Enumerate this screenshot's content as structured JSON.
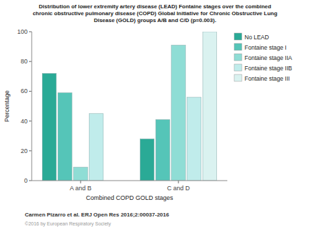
{
  "chart_data": {
    "type": "bar",
    "title": "Distribution of lower extremity artery disease (LEAD) Fontaine stages over the combined\nchronic obstructive pulmonary disease (COPD) Global Initiative for Chronic Obstructive Lung\nDisease (GOLD) groups A/B and C/D (p=0.003).",
    "x_label": "Combined COPD GOLD stages",
    "y_label": "Percentage",
    "categories": [
      "A and B",
      "C and D"
    ],
    "series": [
      {
        "name": "No LEAD",
        "values": [
          72,
          28
        ],
        "color": "#2aaa96"
      },
      {
        "name": "Fontaine stage I",
        "values": [
          59,
          41
        ],
        "color": "#55c5b8"
      },
      {
        "name": "Fontaine stage IIA",
        "values": [
          9,
          91
        ],
        "color": "#8fddd5"
      },
      {
        "name": "Fontaine stage IIB",
        "values": [
          45,
          56
        ],
        "color": "#c0eceb"
      },
      {
        "name": "Fontaine stage III",
        "values": [
          0,
          100
        ],
        "color": "#daf2f0"
      }
    ],
    "ylim": [
      0,
      100
    ],
    "yticks": [
      0,
      20,
      40,
      60,
      80,
      100
    ],
    "grid": false,
    "legend": "upper right",
    "annotations": [
      "Carmen Pizarro et al. ERJ Open Res 2016;2:00037-2016",
      "©2016 by European Respiratory Society"
    ]
  }
}
